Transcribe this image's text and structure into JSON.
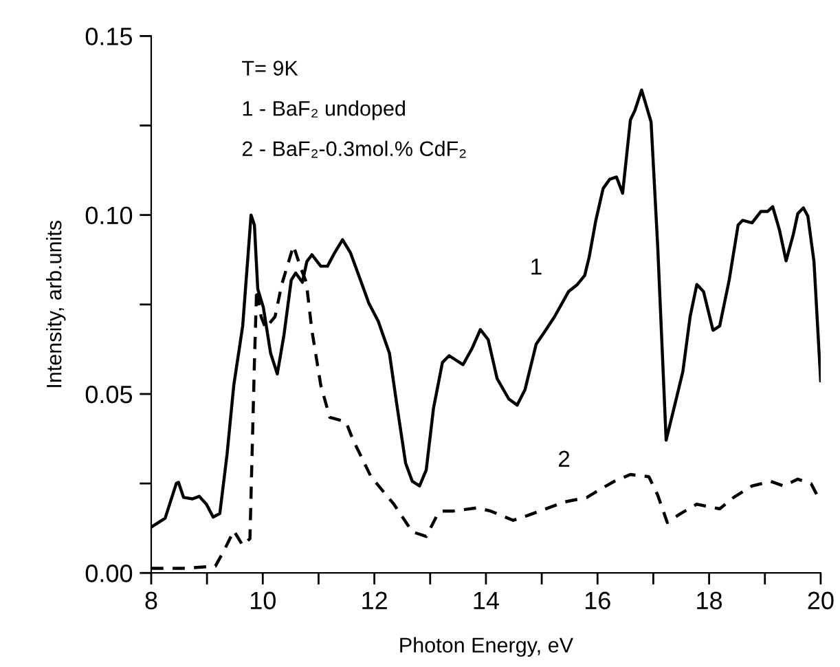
{
  "chart_data": {
    "type": "line",
    "xlabel": "Photon Energy, eV",
    "ylabel": "Intensity, arb.units",
    "annotations": [
      "T= 9K",
      "1 - BaF₂ undoped",
      "2 - BaF₂-0.3mol.% CdF₂"
    ],
    "series": [
      {
        "name": "1",
        "color": "#000000",
        "line_style": "solid",
        "x": [
          8,
          8.25,
          8.45,
          8.49,
          8.58,
          8.74,
          8.86,
          8.99,
          9.11,
          9.23,
          9.36,
          9.48,
          9.64,
          9.79,
          9.85,
          9.91,
          10.01,
          10.14,
          10.26,
          10.38,
          10.51,
          10.59,
          10.71,
          10.79,
          10.88,
          11.04,
          11.16,
          11.29,
          11.43,
          11.57,
          11.78,
          11.9,
          12.07,
          12.27,
          12.4,
          12.56,
          12.68,
          12.81,
          12.93,
          13.06,
          13.22,
          13.34,
          13.59,
          13.75,
          13.9,
          14.04,
          14.2,
          14.41,
          14.56,
          14.7,
          14.9,
          15.07,
          15.23,
          15.48,
          15.64,
          15.77,
          15.85,
          15.97,
          16.1,
          16.22,
          16.34,
          16.45,
          16.59,
          16.67,
          16.79,
          16.96,
          17.08,
          17.23,
          17.37,
          17.53,
          17.66,
          17.78,
          17.9,
          18.07,
          18.19,
          18.36,
          18.52,
          18.6,
          18.77,
          18.93,
          19.05,
          19.14,
          19.26,
          19.38,
          19.51,
          19.59,
          19.69,
          19.77,
          19.88,
          20.0
        ],
        "values": [
          0.0128,
          0.0153,
          0.025,
          0.0253,
          0.0211,
          0.0207,
          0.0214,
          0.0192,
          0.0156,
          0.0166,
          0.0332,
          0.0524,
          0.069,
          0.1,
          0.0972,
          0.0793,
          0.0742,
          0.0614,
          0.0556,
          0.0665,
          0.0818,
          0.0838,
          0.0812,
          0.087,
          0.0889,
          0.0857,
          0.0857,
          0.0895,
          0.0931,
          0.0895,
          0.0806,
          0.0754,
          0.0703,
          0.0614,
          0.0473,
          0.0307,
          0.0256,
          0.0243,
          0.0288,
          0.046,
          0.0588,
          0.0607,
          0.0582,
          0.0627,
          0.068,
          0.0652,
          0.0543,
          0.0486,
          0.0469,
          0.0512,
          0.0639,
          0.0678,
          0.0716,
          0.0786,
          0.0806,
          0.0831,
          0.0882,
          0.0985,
          0.1074,
          0.11,
          0.1106,
          0.1061,
          0.1266,
          0.1292,
          0.1349,
          0.126,
          0.0908,
          0.0371,
          0.046,
          0.0563,
          0.0716,
          0.0806,
          0.0786,
          0.0678,
          0.069,
          0.0818,
          0.0972,
          0.0985,
          0.0978,
          0.101,
          0.101,
          0.1023,
          0.0959,
          0.0872,
          0.0946,
          0.1004,
          0.102,
          0.0997,
          0.087,
          0.0537
        ]
      },
      {
        "name": "2",
        "color": "#000000",
        "line_style": "dashed",
        "x": [
          8,
          8.58,
          9.15,
          9.31,
          9.48,
          9.64,
          9.77,
          9.85,
          9.89,
          9.97,
          10.05,
          10.22,
          10.34,
          10.55,
          10.67,
          10.78,
          10.88,
          11.04,
          11.2,
          11.49,
          11.62,
          11.94,
          12.35,
          12.68,
          12.93,
          13.14,
          13.22,
          13.42,
          13.84,
          14.08,
          14.49,
          14.74,
          15.07,
          15.4,
          15.81,
          16.01,
          16.3,
          16.59,
          16.92,
          17.08,
          17.25,
          17.49,
          17.78,
          18.19,
          18.44,
          18.77,
          19.1,
          19.34,
          19.59,
          19.83,
          20.0
        ],
        "values": [
          0.0013,
          0.0013,
          0.0019,
          0.0064,
          0.0118,
          0.0077,
          0.0096,
          0.0588,
          0.0793,
          0.0716,
          0.0684,
          0.0716,
          0.0806,
          0.0914,
          0.0857,
          0.0812,
          0.0678,
          0.0524,
          0.0435,
          0.0422,
          0.0371,
          0.0269,
          0.0192,
          0.0115,
          0.0102,
          0.0166,
          0.0173,
          0.0173,
          0.0182,
          0.0173,
          0.0147,
          0.016,
          0.0179,
          0.0198,
          0.0211,
          0.023,
          0.0256,
          0.0275,
          0.0269,
          0.0217,
          0.0141,
          0.0166,
          0.0192,
          0.0179,
          0.0211,
          0.0243,
          0.0256,
          0.0243,
          0.0262,
          0.0249,
          0.0198
        ]
      }
    ],
    "xlim": [
      8,
      20
    ],
    "ylim": [
      0,
      0.15
    ],
    "xticks": [
      8,
      {
        "value": 9,
        "label": null
      },
      10,
      {
        "value": 11,
        "label": null
      },
      12,
      {
        "value": 13,
        "label": null
      },
      14,
      {
        "value": 15,
        "label": null
      },
      16,
      {
        "value": 17,
        "label": null
      },
      18,
      {
        "value": 19,
        "label": null
      },
      20
    ],
    "yticks": [
      {
        "value": 0,
        "label": "0.00"
      },
      {
        "value": 0.025,
        "label": null
      },
      {
        "value": 0.05,
        "label": "0.05"
      },
      {
        "value": 0.075,
        "label": null
      },
      {
        "value": 0.1,
        "label": "0.10"
      },
      {
        "value": 0.125,
        "label": null
      },
      {
        "value": 0.15,
        "label": "0.15"
      }
    ],
    "grid": false,
    "legend": false
  }
}
